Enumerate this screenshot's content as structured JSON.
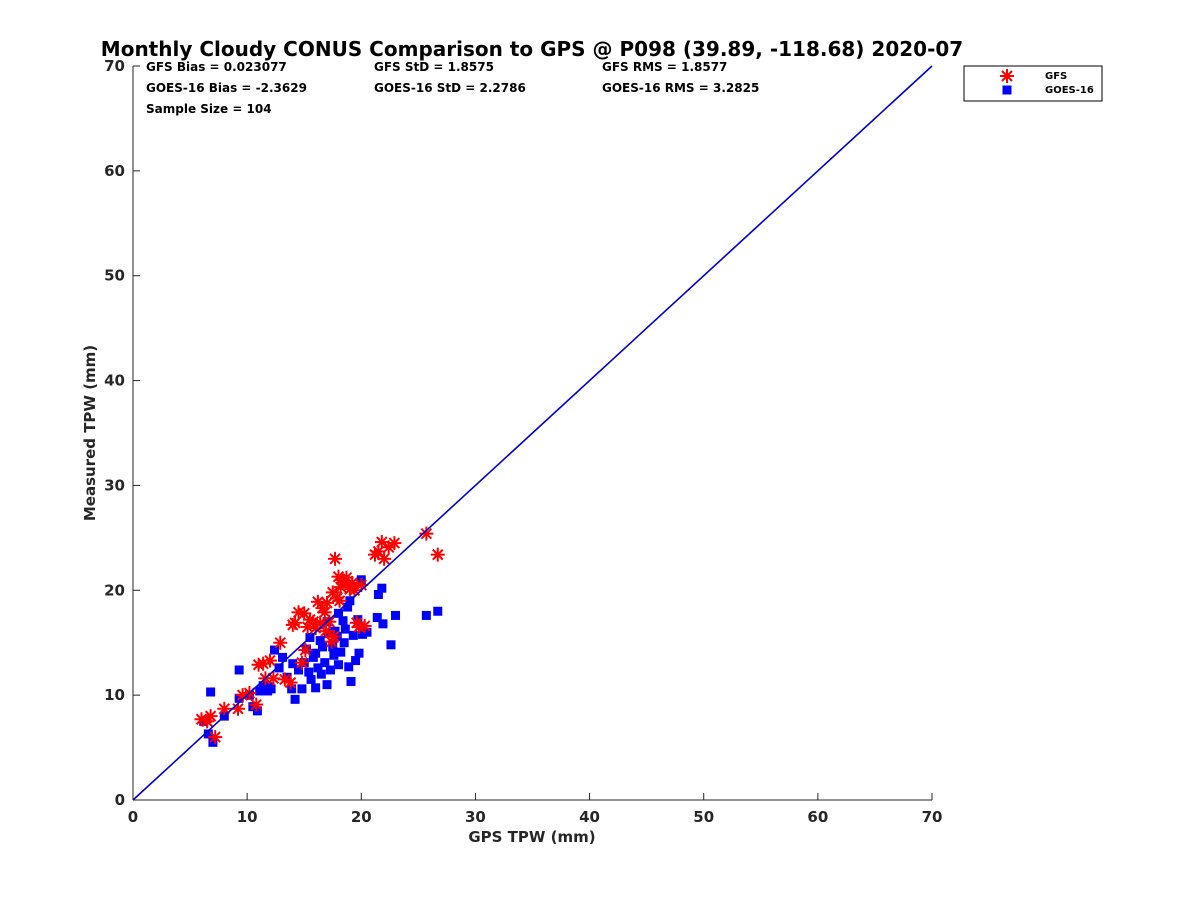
{
  "chart_data": {
    "type": "scatter",
    "title": "Monthly Cloudy CONUS Comparison to GPS @ P098 (39.89, -118.68) 2020-07",
    "xlabel": "GPS TPW (mm)",
    "ylabel": "Measured TPW (mm)",
    "xlim": [
      0,
      70
    ],
    "ylim": [
      0,
      70
    ],
    "xticks": [
      "0",
      "10",
      "20",
      "30",
      "40",
      "50",
      "60",
      "70"
    ],
    "yticks": [
      "0",
      "10",
      "20",
      "30",
      "40",
      "50",
      "60",
      "70"
    ],
    "grid": false,
    "legend_position": "top-right",
    "stats": {
      "gfs_bias": "GFS Bias = 0.023077",
      "goes_bias": "GOES-16 Bias = -2.3629",
      "sample_size": "Sample Size = 104",
      "gfs_std": "GFS StD = 1.8575",
      "goes_std": "GOES-16 StD = 2.2786",
      "gfs_rms": "GFS RMS = 1.8577",
      "goes_rms": "GOES-16 RMS = 3.2825"
    },
    "reference_line": {
      "x": [
        0,
        70
      ],
      "y": [
        0,
        70
      ],
      "color": "#0000cc"
    },
    "series": [
      {
        "name": "GFS",
        "marker": "asterisk",
        "color": "#ff0000",
        "points": [
          [
            6.0,
            7.7
          ],
          [
            6.5,
            7.5
          ],
          [
            6.8,
            8.0
          ],
          [
            7.2,
            6.0
          ],
          [
            8.0,
            8.7
          ],
          [
            9.2,
            8.7
          ],
          [
            9.6,
            10.0
          ],
          [
            10.2,
            10.2
          ],
          [
            10.8,
            9.1
          ],
          [
            11.0,
            12.9
          ],
          [
            11.4,
            13.0
          ],
          [
            11.6,
            11.6
          ],
          [
            12.0,
            13.3
          ],
          [
            12.3,
            11.6
          ],
          [
            12.9,
            15.0
          ],
          [
            13.3,
            11.5
          ],
          [
            13.8,
            11.2
          ],
          [
            14.0,
            16.7
          ],
          [
            14.2,
            16.9
          ],
          [
            14.5,
            17.9
          ],
          [
            14.8,
            13.1
          ],
          [
            15.0,
            17.8
          ],
          [
            15.3,
            16.5
          ],
          [
            15.5,
            17.2
          ],
          [
            15.8,
            17.0
          ],
          [
            16.0,
            16.4
          ],
          [
            16.2,
            18.9
          ],
          [
            16.4,
            16.9
          ],
          [
            16.6,
            18.3
          ],
          [
            16.8,
            17.9
          ],
          [
            17.0,
            18.8
          ],
          [
            17.2,
            17.0
          ],
          [
            17.4,
            15.1
          ],
          [
            17.6,
            15.6
          ],
          [
            17.7,
            23.0
          ],
          [
            17.9,
            19.3
          ],
          [
            18.0,
            21.3
          ],
          [
            18.2,
            20.3
          ],
          [
            18.3,
            21.0
          ],
          [
            18.5,
            20.9
          ],
          [
            18.7,
            21.2
          ],
          [
            19.0,
            20.1
          ],
          [
            19.2,
            20.7
          ],
          [
            19.4,
            20.0
          ],
          [
            19.8,
            16.5
          ],
          [
            20.0,
            20.5
          ],
          [
            20.3,
            16.6
          ],
          [
            21.2,
            23.4
          ],
          [
            21.5,
            23.7
          ],
          [
            21.8,
            24.6
          ],
          [
            22.0,
            23.0
          ],
          [
            22.4,
            24.1
          ],
          [
            22.9,
            24.5
          ],
          [
            25.7,
            25.4
          ],
          [
            26.7,
            23.4
          ],
          [
            15.1,
            14.3
          ],
          [
            16.9,
            16.1
          ],
          [
            18.1,
            19.0
          ],
          [
            17.5,
            19.8
          ],
          [
            19.6,
            16.9
          ]
        ]
      },
      {
        "name": "GOES-16",
        "marker": "square",
        "color": "#0000ff",
        "points": [
          [
            6.2,
            7.5
          ],
          [
            6.6,
            6.3
          ],
          [
            6.8,
            10.3
          ],
          [
            7.0,
            5.5
          ],
          [
            8.0,
            8.0
          ],
          [
            9.3,
            12.4
          ],
          [
            9.3,
            9.7
          ],
          [
            10.2,
            10.0
          ],
          [
            10.5,
            8.9
          ],
          [
            10.9,
            8.5
          ],
          [
            11.1,
            10.4
          ],
          [
            11.4,
            10.9
          ],
          [
            11.8,
            10.4
          ],
          [
            12.1,
            10.6
          ],
          [
            12.4,
            14.3
          ],
          [
            12.8,
            12.6
          ],
          [
            13.1,
            13.6
          ],
          [
            13.5,
            11.7
          ],
          [
            13.9,
            10.6
          ],
          [
            14.2,
            9.6
          ],
          [
            14.5,
            12.4
          ],
          [
            14.8,
            10.6
          ],
          [
            15.0,
            13.1
          ],
          [
            15.2,
            14.4
          ],
          [
            15.4,
            12.2
          ],
          [
            15.6,
            11.5
          ],
          [
            15.8,
            13.6
          ],
          [
            16.0,
            10.7
          ],
          [
            16.2,
            12.6
          ],
          [
            16.4,
            15.2
          ],
          [
            16.6,
            14.6
          ],
          [
            16.8,
            13.1
          ],
          [
            17.0,
            11.0
          ],
          [
            17.1,
            15.9
          ],
          [
            17.3,
            12.4
          ],
          [
            17.5,
            14.6
          ],
          [
            17.7,
            16.1
          ],
          [
            17.9,
            15.6
          ],
          [
            18.0,
            12.9
          ],
          [
            18.2,
            14.1
          ],
          [
            18.4,
            17.1
          ],
          [
            18.6,
            16.3
          ],
          [
            18.8,
            18.4
          ],
          [
            18.9,
            12.7
          ],
          [
            19.1,
            11.3
          ],
          [
            19.3,
            15.7
          ],
          [
            19.5,
            13.3
          ],
          [
            19.7,
            17.2
          ],
          [
            20.1,
            15.8
          ],
          [
            20.5,
            16.0
          ],
          [
            21.4,
            17.4
          ],
          [
            21.5,
            19.6
          ],
          [
            21.8,
            20.2
          ],
          [
            21.9,
            16.8
          ],
          [
            22.6,
            14.8
          ],
          [
            23.0,
            17.6
          ],
          [
            25.7,
            17.6
          ],
          [
            26.7,
            18.0
          ],
          [
            20.0,
            21.0
          ],
          [
            18.5,
            15.0
          ],
          [
            17.0,
            17.0
          ],
          [
            16.0,
            14.0
          ],
          [
            15.5,
            15.5
          ],
          [
            14.0,
            13.0
          ],
          [
            19.0,
            19.0
          ],
          [
            18.0,
            17.8
          ],
          [
            17.6,
            13.8
          ],
          [
            16.5,
            12.0
          ],
          [
            19.8,
            14.0
          ],
          [
            12.0,
            10.8
          ]
        ]
      }
    ]
  }
}
